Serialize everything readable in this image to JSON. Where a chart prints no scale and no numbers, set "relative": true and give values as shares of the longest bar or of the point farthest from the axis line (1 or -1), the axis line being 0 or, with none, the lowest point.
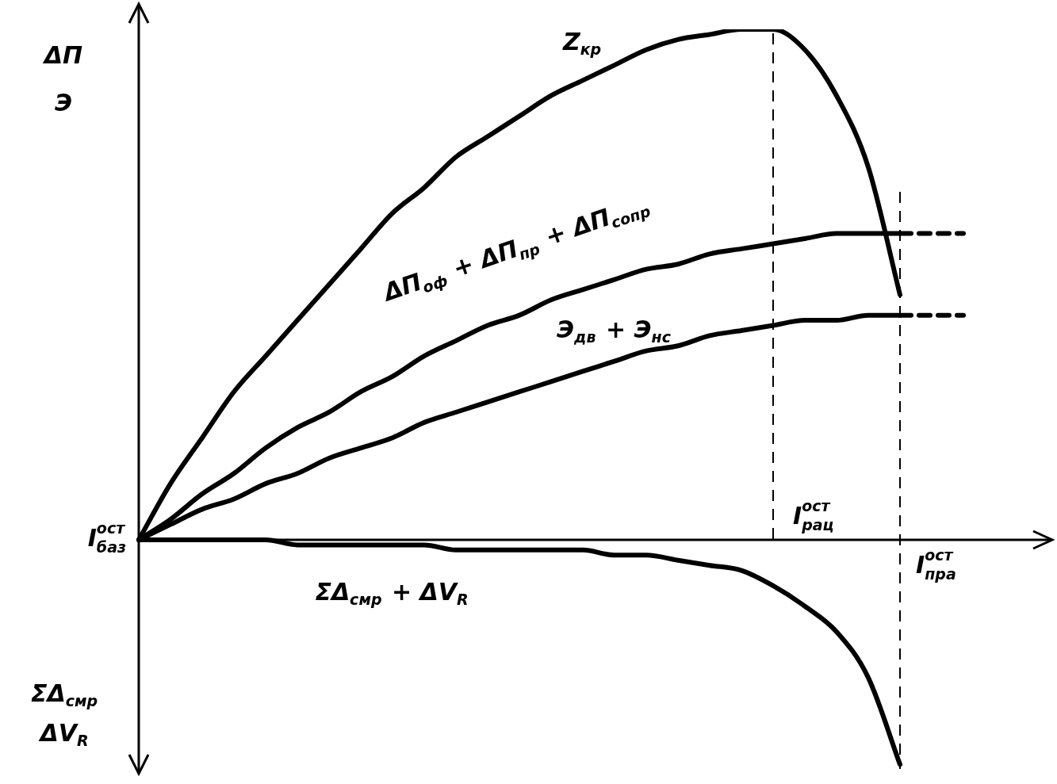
{
  "chart_data": {
    "type": "line",
    "relative": true,
    "ylabel": "ΔП Э",
    "categories": [
      null,
      null,
      null,
      null,
      null,
      null,
      null,
      null,
      null,
      null,
      null,
      null,
      null,
      null,
      null,
      null,
      null,
      null,
      null,
      null,
      null,
      null,
      null,
      null,
      null,
      null,
      null
    ],
    "series": [
      {
        "name": "Z$_{кр}$",
        "color": "#000000",
        "values": [
          0,
          0.11,
          0.2,
          0.29,
          0.36,
          0.43,
          0.5,
          0.57,
          0.64,
          0.69,
          0.75,
          0.79,
          0.83,
          0.87,
          0.9,
          0.93,
          0.96,
          0.98,
          0.99,
          1,
          1,
          0.96,
          0.87,
          0.73,
          0.48,
          null,
          null
        ]
      },
      {
        "name": "ΔП$_{оф}$ + ΔП$_{пр}$ + ΔП$_{сопр}$",
        "color": "#000000",
        "values": [
          0,
          0.04,
          0.09,
          0.13,
          0.18,
          0.22,
          0.25,
          0.29,
          0.32,
          0.36,
          0.39,
          0.42,
          0.44,
          0.47,
          0.49,
          0.51,
          0.53,
          0.54,
          0.56,
          0.57,
          0.58,
          0.59,
          0.6,
          0.6,
          0.6,
          null,
          null
        ]
      },
      {
        "color": "#000000",
        "line_style": "dashed",
        "values": [
          null,
          null,
          null,
          null,
          null,
          null,
          null,
          null,
          null,
          null,
          null,
          null,
          null,
          null,
          null,
          null,
          null,
          null,
          null,
          null,
          null,
          null,
          null,
          null,
          0.6,
          0.6,
          0.6
        ]
      },
      {
        "name": "Э$_{дв}$ + Э$_{нс}$",
        "color": "#000000",
        "values": [
          0,
          0.03,
          0.06,
          0.08,
          0.11,
          0.13,
          0.16,
          0.18,
          0.2,
          0.23,
          0.25,
          0.27,
          0.29,
          0.31,
          0.33,
          0.35,
          0.37,
          0.38,
          0.4,
          0.41,
          0.42,
          0.43,
          0.43,
          0.44,
          0.44,
          null,
          null
        ]
      },
      {
        "color": "#000000",
        "line_style": "dashed",
        "values": [
          null,
          null,
          null,
          null,
          null,
          null,
          null,
          null,
          null,
          null,
          null,
          null,
          null,
          null,
          null,
          null,
          null,
          null,
          null,
          null,
          null,
          null,
          null,
          null,
          0.44,
          0.44,
          0.44
        ]
      },
      {
        "name": "ΣΔ$_{смр}$ + ΔV$_{R}$",
        "color": "#000000",
        "values": [
          0,
          0,
          0,
          0,
          0,
          -0.01,
          -0.01,
          -0.01,
          -0.01,
          -0.01,
          -0.02,
          -0.02,
          -0.02,
          -0.02,
          -0.02,
          -0.03,
          -0.03,
          -0.04,
          -0.05,
          -0.06,
          -0.09,
          -0.13,
          -0.18,
          -0.27,
          -0.44,
          null,
          null
        ]
      }
    ],
    "annotations": [
      "I$^{ост}$$_{баз}$",
      "I$^{ост}$$_{рац}$",
      "I$^{ост}$$_{пра}$",
      "ΣΔ$_{смр}$ ΔV$_{R}$"
    ],
    "legend": false,
    "marker": "none",
    "line_style": "solid",
    "tick_labels": false
  }
}
